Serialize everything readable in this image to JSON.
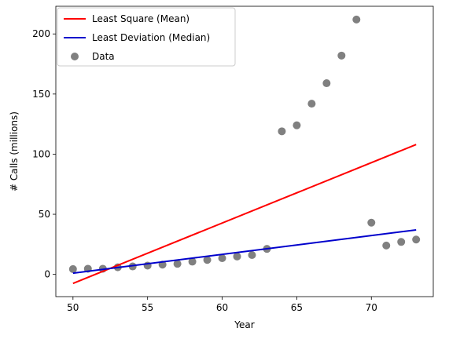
{
  "chart_data": {
    "type": "scatter",
    "title": "",
    "xlabel": "Year",
    "ylabel": "# Calls (millions)",
    "xlim": [
      48.85,
      74.15
    ],
    "ylim": [
      -18.5,
      223
    ],
    "xticks": [
      50,
      55,
      60,
      65,
      70
    ],
    "yticks": [
      0,
      50,
      100,
      150,
      200
    ],
    "grid": false,
    "legend_position": "top-left",
    "series": [
      {
        "name": "Least Square (Mean)",
        "type": "line",
        "color": "#ff0000",
        "x": [
          50,
          73
        ],
        "y": [
          -7.5,
          108
        ]
      },
      {
        "name": "Least Deviation (Median)",
        "type": "line",
        "color": "#0000cc",
        "x": [
          50,
          73
        ],
        "y": [
          1,
          37
        ]
      },
      {
        "name": "Data",
        "type": "scatter",
        "color": "#808080",
        "x": [
          50,
          51,
          52,
          53,
          54,
          55,
          56,
          57,
          58,
          59,
          60,
          61,
          62,
          63,
          64,
          65,
          66,
          67,
          68,
          69,
          70,
          71,
          72,
          73
        ],
        "y": [
          4.4,
          4.7,
          4.7,
          5.9,
          6.6,
          7.3,
          8.1,
          8.8,
          10.6,
          12.0,
          13.5,
          14.9,
          16.1,
          21.2,
          119.0,
          124.0,
          142.0,
          159.0,
          182.0,
          212.0,
          43.0,
          24.0,
          27.0,
          29.0
        ]
      }
    ]
  }
}
